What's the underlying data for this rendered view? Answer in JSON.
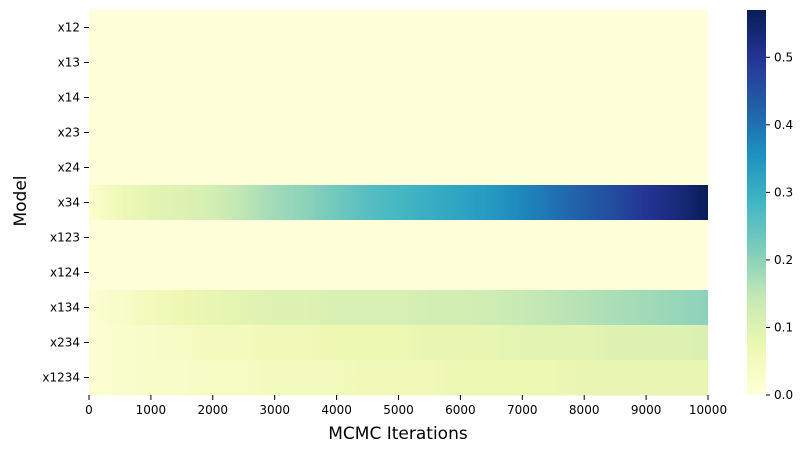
{
  "chart_data": {
    "type": "heatmap",
    "title": "",
    "xlabel": "MCMC Iterations",
    "ylabel": "Model",
    "rows": [
      "x12",
      "x13",
      "x14",
      "x23",
      "x24",
      "x34",
      "x123",
      "x124",
      "x134",
      "x234",
      "x1234"
    ],
    "x_ticks": [
      0,
      1000,
      2000,
      3000,
      4000,
      5000,
      6000,
      7000,
      8000,
      9000,
      10000
    ],
    "xlim": [
      0,
      10000
    ],
    "x_samples": [
      0,
      500,
      1000,
      1500,
      2000,
      2500,
      3000,
      3500,
      4000,
      4500,
      5000,
      5500,
      6000,
      6500,
      7000,
      7500,
      8000,
      8500,
      9000,
      9500,
      10000
    ],
    "values": [
      [
        0,
        0,
        0,
        0,
        0,
        0,
        0,
        0,
        0,
        0,
        0,
        0,
        0,
        0,
        0,
        0,
        0,
        0,
        0,
        0,
        0
      ],
      [
        0,
        0,
        0,
        0,
        0,
        0,
        0,
        0,
        0,
        0,
        0,
        0,
        0,
        0,
        0,
        0,
        0,
        0,
        0,
        0,
        0
      ],
      [
        0,
        0,
        0,
        0,
        0,
        0,
        0,
        0,
        0,
        0,
        0,
        0,
        0,
        0,
        0,
        0,
        0,
        0,
        0,
        0,
        0
      ],
      [
        0,
        0,
        0,
        0,
        0,
        0,
        0,
        0,
        0,
        0,
        0,
        0,
        0,
        0,
        0,
        0,
        0,
        0,
        0,
        0,
        0
      ],
      [
        0,
        0,
        0,
        0,
        0,
        0,
        0,
        0,
        0,
        0,
        0,
        0,
        0,
        0,
        0,
        0,
        0,
        0,
        0,
        0,
        0
      ],
      [
        0.02,
        0.06,
        0.09,
        0.1,
        0.12,
        0.15,
        0.18,
        0.2,
        0.23,
        0.26,
        0.28,
        0.3,
        0.32,
        0.34,
        0.37,
        0.4,
        0.43,
        0.46,
        0.5,
        0.53,
        0.57
      ],
      [
        0,
        0,
        0,
        0,
        0,
        0,
        0,
        0,
        0,
        0,
        0,
        0,
        0,
        0,
        0,
        0,
        0,
        0,
        0,
        0,
        0
      ],
      [
        0,
        0,
        0,
        0,
        0,
        0,
        0,
        0,
        0,
        0,
        0,
        0,
        0,
        0,
        0,
        0,
        0,
        0,
        0,
        0,
        0
      ],
      [
        0.01,
        0.03,
        0.05,
        0.07,
        0.08,
        0.09,
        0.1,
        0.1,
        0.11,
        0.11,
        0.11,
        0.12,
        0.12,
        0.13,
        0.14,
        0.15,
        0.16,
        0.17,
        0.18,
        0.19,
        0.2
      ],
      [
        0.01,
        0.02,
        0.03,
        0.04,
        0.05,
        0.05,
        0.06,
        0.06,
        0.07,
        0.07,
        0.07,
        0.08,
        0.08,
        0.08,
        0.09,
        0.09,
        0.09,
        0.1,
        0.1,
        0.1,
        0.11
      ],
      [
        0.01,
        0.02,
        0.03,
        0.03,
        0.04,
        0.04,
        0.05,
        0.05,
        0.05,
        0.06,
        0.06,
        0.06,
        0.07,
        0.07,
        0.07,
        0.07,
        0.08,
        0.08,
        0.08,
        0.08,
        0.08
      ]
    ],
    "colorbar": {
      "colormap": "YlGnBu",
      "vmin": 0,
      "vmax": 0.57,
      "ticks": [
        "0.0",
        "0.1",
        "0.2",
        "0.3",
        "0.4",
        "0.5"
      ]
    },
    "grid": false,
    "legend": "colorbar-right"
  }
}
